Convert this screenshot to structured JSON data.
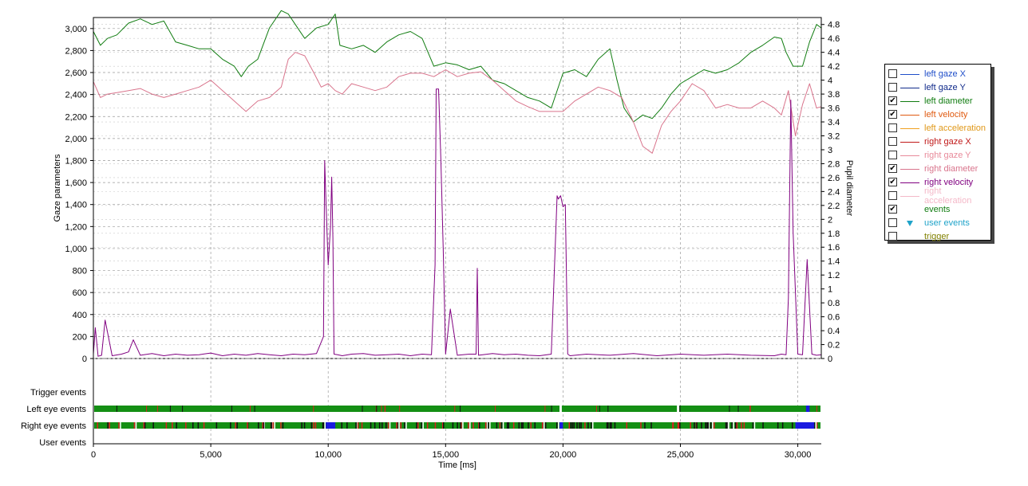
{
  "chart_data": {
    "type": "line",
    "xlabel": "Time [ms]",
    "ylabel_left": "Gaze parameters",
    "ylabel_right": "Pupil diameter",
    "xlim": [
      0,
      31000
    ],
    "ylim_left": [
      0,
      3100
    ],
    "ylim_right": [
      0,
      4.9
    ],
    "x_ticks": [
      0,
      5000,
      10000,
      15000,
      20000,
      25000,
      30000
    ],
    "x_tick_labels": [
      "0",
      "5,000",
      "10,000",
      "15,000",
      "20,000",
      "25,000",
      "30,000"
    ],
    "y_left_ticks": [
      0,
      200,
      400,
      600,
      800,
      1000,
      1200,
      1400,
      1600,
      1800,
      2000,
      2200,
      2400,
      2600,
      2800,
      3000
    ],
    "y_left_tick_labels": [
      "0",
      "200",
      "400",
      "600",
      "800",
      "1,000",
      "1,200",
      "1,400",
      "1,600",
      "1,800",
      "2,000",
      "2,200",
      "2,400",
      "2,600",
      "2,800",
      "3,000"
    ],
    "y_right_ticks": [
      0,
      0.2,
      0.4,
      0.6,
      0.8,
      1,
      1.2,
      1.4,
      1.6,
      1.8,
      2,
      2.2,
      2.4,
      2.6,
      2.8,
      3,
      3.2,
      3.4,
      3.6,
      3.8,
      4,
      4.2,
      4.4,
      4.6,
      4.8
    ],
    "y_right_tick_labels": [
      "0",
      "0.2",
      "0.4",
      "0.6",
      "0.8",
      "1",
      "1.2",
      "1.4",
      "1.6",
      "1.8",
      "2",
      "2.2",
      "2.4",
      "2.6",
      "2.8",
      "3",
      "3.2",
      "3.4",
      "3.6",
      "3.8",
      "4",
      "4.2",
      "4.4",
      "4.6",
      "4.8"
    ],
    "grid": true,
    "legend_position": "right",
    "series": [
      {
        "name": "left diameter",
        "axis": "right",
        "color": "#107c10",
        "x": [
          0,
          300,
          600,
          1000,
          1500,
          2000,
          2500,
          3000,
          3500,
          4000,
          4500,
          5000,
          5500,
          6000,
          6300,
          6600,
          7000,
          7500,
          8000,
          8300,
          8600,
          9000,
          9500,
          10000,
          10300,
          10500,
          11000,
          11500,
          12000,
          12500,
          13000,
          13500,
          14000,
          14500,
          15000,
          15500,
          16000,
          16500,
          17000,
          17500,
          18000,
          18500,
          19000,
          19500,
          20000,
          20500,
          21000,
          21500,
          22000,
          22300,
          22600,
          23000,
          23400,
          23800,
          24200,
          24600,
          25000,
          25500,
          26000,
          26500,
          27000,
          27500,
          28000,
          28500,
          29000,
          29300,
          29500,
          29800,
          30000,
          30200,
          30500,
          30800,
          31000
        ],
        "y": [
          4.7,
          4.5,
          4.6,
          4.65,
          4.82,
          4.88,
          4.8,
          4.85,
          4.55,
          4.5,
          4.45,
          4.45,
          4.3,
          4.2,
          4.05,
          4.2,
          4.3,
          4.75,
          5.0,
          4.95,
          4.8,
          4.6,
          4.75,
          4.8,
          4.95,
          4.5,
          4.45,
          4.5,
          4.4,
          4.55,
          4.65,
          4.7,
          4.6,
          4.2,
          4.25,
          4.22,
          4.15,
          4.2,
          4.0,
          3.95,
          3.85,
          3.75,
          3.7,
          3.6,
          4.1,
          4.15,
          4.05,
          4.3,
          4.45,
          4.0,
          3.6,
          3.4,
          3.5,
          3.45,
          3.6,
          3.8,
          3.95,
          4.05,
          4.15,
          4.1,
          4.15,
          4.25,
          4.4,
          4.5,
          4.62,
          4.6,
          4.4,
          4.2,
          4.2,
          4.2,
          4.55,
          4.8,
          4.75
        ]
      },
      {
        "name": "right diameter",
        "axis": "right",
        "color": "#d9748c",
        "x": [
          0,
          300,
          600,
          1000,
          1500,
          2000,
          2500,
          3000,
          3500,
          4000,
          4500,
          5000,
          5500,
          6000,
          6500,
          7000,
          7500,
          8000,
          8300,
          8600,
          9000,
          9400,
          9700,
          10000,
          10300,
          10600,
          11000,
          11500,
          12000,
          12500,
          13000,
          13500,
          14000,
          14500,
          15000,
          15500,
          16000,
          16500,
          17000,
          17500,
          18000,
          18500,
          19000,
          19500,
          20000,
          20500,
          21000,
          21500,
          22000,
          22500,
          23000,
          23400,
          23800,
          24200,
          24600,
          25000,
          25500,
          26000,
          26500,
          27000,
          27500,
          28000,
          28500,
          29000,
          29300,
          29600,
          29900,
          30200,
          30500,
          30800,
          31000
        ],
        "y": [
          3.98,
          3.75,
          3.8,
          3.82,
          3.85,
          3.88,
          3.8,
          3.75,
          3.8,
          3.85,
          3.9,
          4.0,
          3.85,
          3.7,
          3.55,
          3.7,
          3.75,
          3.9,
          4.3,
          4.4,
          4.35,
          4.1,
          3.9,
          3.95,
          3.85,
          3.8,
          3.95,
          3.9,
          3.85,
          3.9,
          4.05,
          4.1,
          4.1,
          4.05,
          4.15,
          4.05,
          4.1,
          4.12,
          4.0,
          3.85,
          3.7,
          3.62,
          3.55,
          3.55,
          3.55,
          3.7,
          3.8,
          3.9,
          3.85,
          3.75,
          3.4,
          3.05,
          2.95,
          3.35,
          3.55,
          3.7,
          3.95,
          3.85,
          3.6,
          3.65,
          3.6,
          3.6,
          3.7,
          3.6,
          3.5,
          3.85,
          3.2,
          3.65,
          3.95,
          3.6,
          3.62
        ]
      },
      {
        "name": "right velocity",
        "axis": "left",
        "color": "#800080",
        "x": [
          0,
          80,
          200,
          350,
          500,
          800,
          1200,
          1500,
          1700,
          2000,
          2500,
          3000,
          3500,
          4000,
          4500,
          5000,
          5500,
          6000,
          6500,
          7000,
          7500,
          8000,
          8500,
          9000,
          9500,
          9800,
          9850,
          9900,
          10000,
          10100,
          10150,
          10200,
          10250,
          10400,
          10600,
          11000,
          11500,
          12000,
          12500,
          13000,
          13500,
          14000,
          14400,
          14550,
          14600,
          14700,
          14800,
          14900,
          15000,
          15200,
          15500,
          16000,
          16300,
          16350,
          16400,
          17000,
          17500,
          18000,
          18500,
          19000,
          19500,
          19750,
          19800,
          19900,
          20000,
          20100,
          20200,
          20300,
          21000,
          22000,
          23000,
          24000,
          25000,
          26000,
          27000,
          28000,
          29000,
          29300,
          29500,
          29600,
          29700,
          29800,
          30000,
          30200,
          30400,
          30600,
          30800,
          31000
        ],
        "y": [
          40,
          280,
          20,
          30,
          350,
          25,
          40,
          60,
          170,
          30,
          45,
          25,
          40,
          30,
          35,
          50,
          25,
          40,
          30,
          45,
          35,
          25,
          40,
          35,
          45,
          200,
          1800,
          1450,
          850,
          1200,
          1650,
          1100,
          40,
          35,
          25,
          40,
          45,
          30,
          35,
          40,
          25,
          40,
          35,
          850,
          2450,
          2450,
          1800,
          1000,
          40,
          450,
          30,
          40,
          40,
          820,
          30,
          45,
          35,
          40,
          30,
          25,
          40,
          1480,
          1450,
          1480,
          1380,
          1400,
          40,
          25,
          40,
          30,
          45,
          25,
          40,
          30,
          40,
          30,
          25,
          40,
          35,
          550,
          2350,
          1150,
          40,
          35,
          900,
          40,
          30,
          35
        ]
      }
    ],
    "event_tracks": [
      "Trigger events",
      "Left eye events",
      "Right eye events",
      "User events"
    ],
    "event_colors": {
      "fixation": "#148f14",
      "saccade": "#111111",
      "blink": "#1a1ae0",
      "other": "#d92020"
    }
  },
  "legend": {
    "items": [
      {
        "label": "left gaze X",
        "checked": false,
        "color": "#1f4ec9",
        "text_color": "#1f4ec9"
      },
      {
        "label": "left gaze Y",
        "checked": false,
        "color": "#102a8a",
        "text_color": "#102a8a"
      },
      {
        "label": "left diameter",
        "checked": true,
        "color": "#107c10",
        "text_color": "#107c10"
      },
      {
        "label": "left velocity",
        "checked": true,
        "color": "#e05a10",
        "text_color": "#e05a10"
      },
      {
        "label": "left acceleration",
        "checked": false,
        "color": "#f0a020",
        "text_color": "#e09818"
      },
      {
        "label": "right gaze X",
        "checked": false,
        "color": "#c01818",
        "text_color": "#c01818"
      },
      {
        "label": "right gaze Y",
        "checked": false,
        "color": "#e88a9a",
        "text_color": "#e88a9a"
      },
      {
        "label": "right diameter",
        "checked": true,
        "color": "#d9748c",
        "text_color": "#d9748c"
      },
      {
        "label": "right velocity",
        "checked": true,
        "color": "#800080",
        "text_color": "#800080"
      },
      {
        "label": "right acceleration",
        "checked": false,
        "color": "#f4b8c8",
        "text_color": "#f4b8c8"
      },
      {
        "label": "events",
        "checked": true,
        "color": "",
        "text_color": "#107c10"
      },
      {
        "label": "user events",
        "checked": false,
        "color": "#1fa3c9",
        "text_color": "#1fa3c9",
        "marker": "triangle-down-icon"
      },
      {
        "label": "trigger",
        "checked": false,
        "color": "",
        "text_color": "#808000"
      }
    ]
  }
}
